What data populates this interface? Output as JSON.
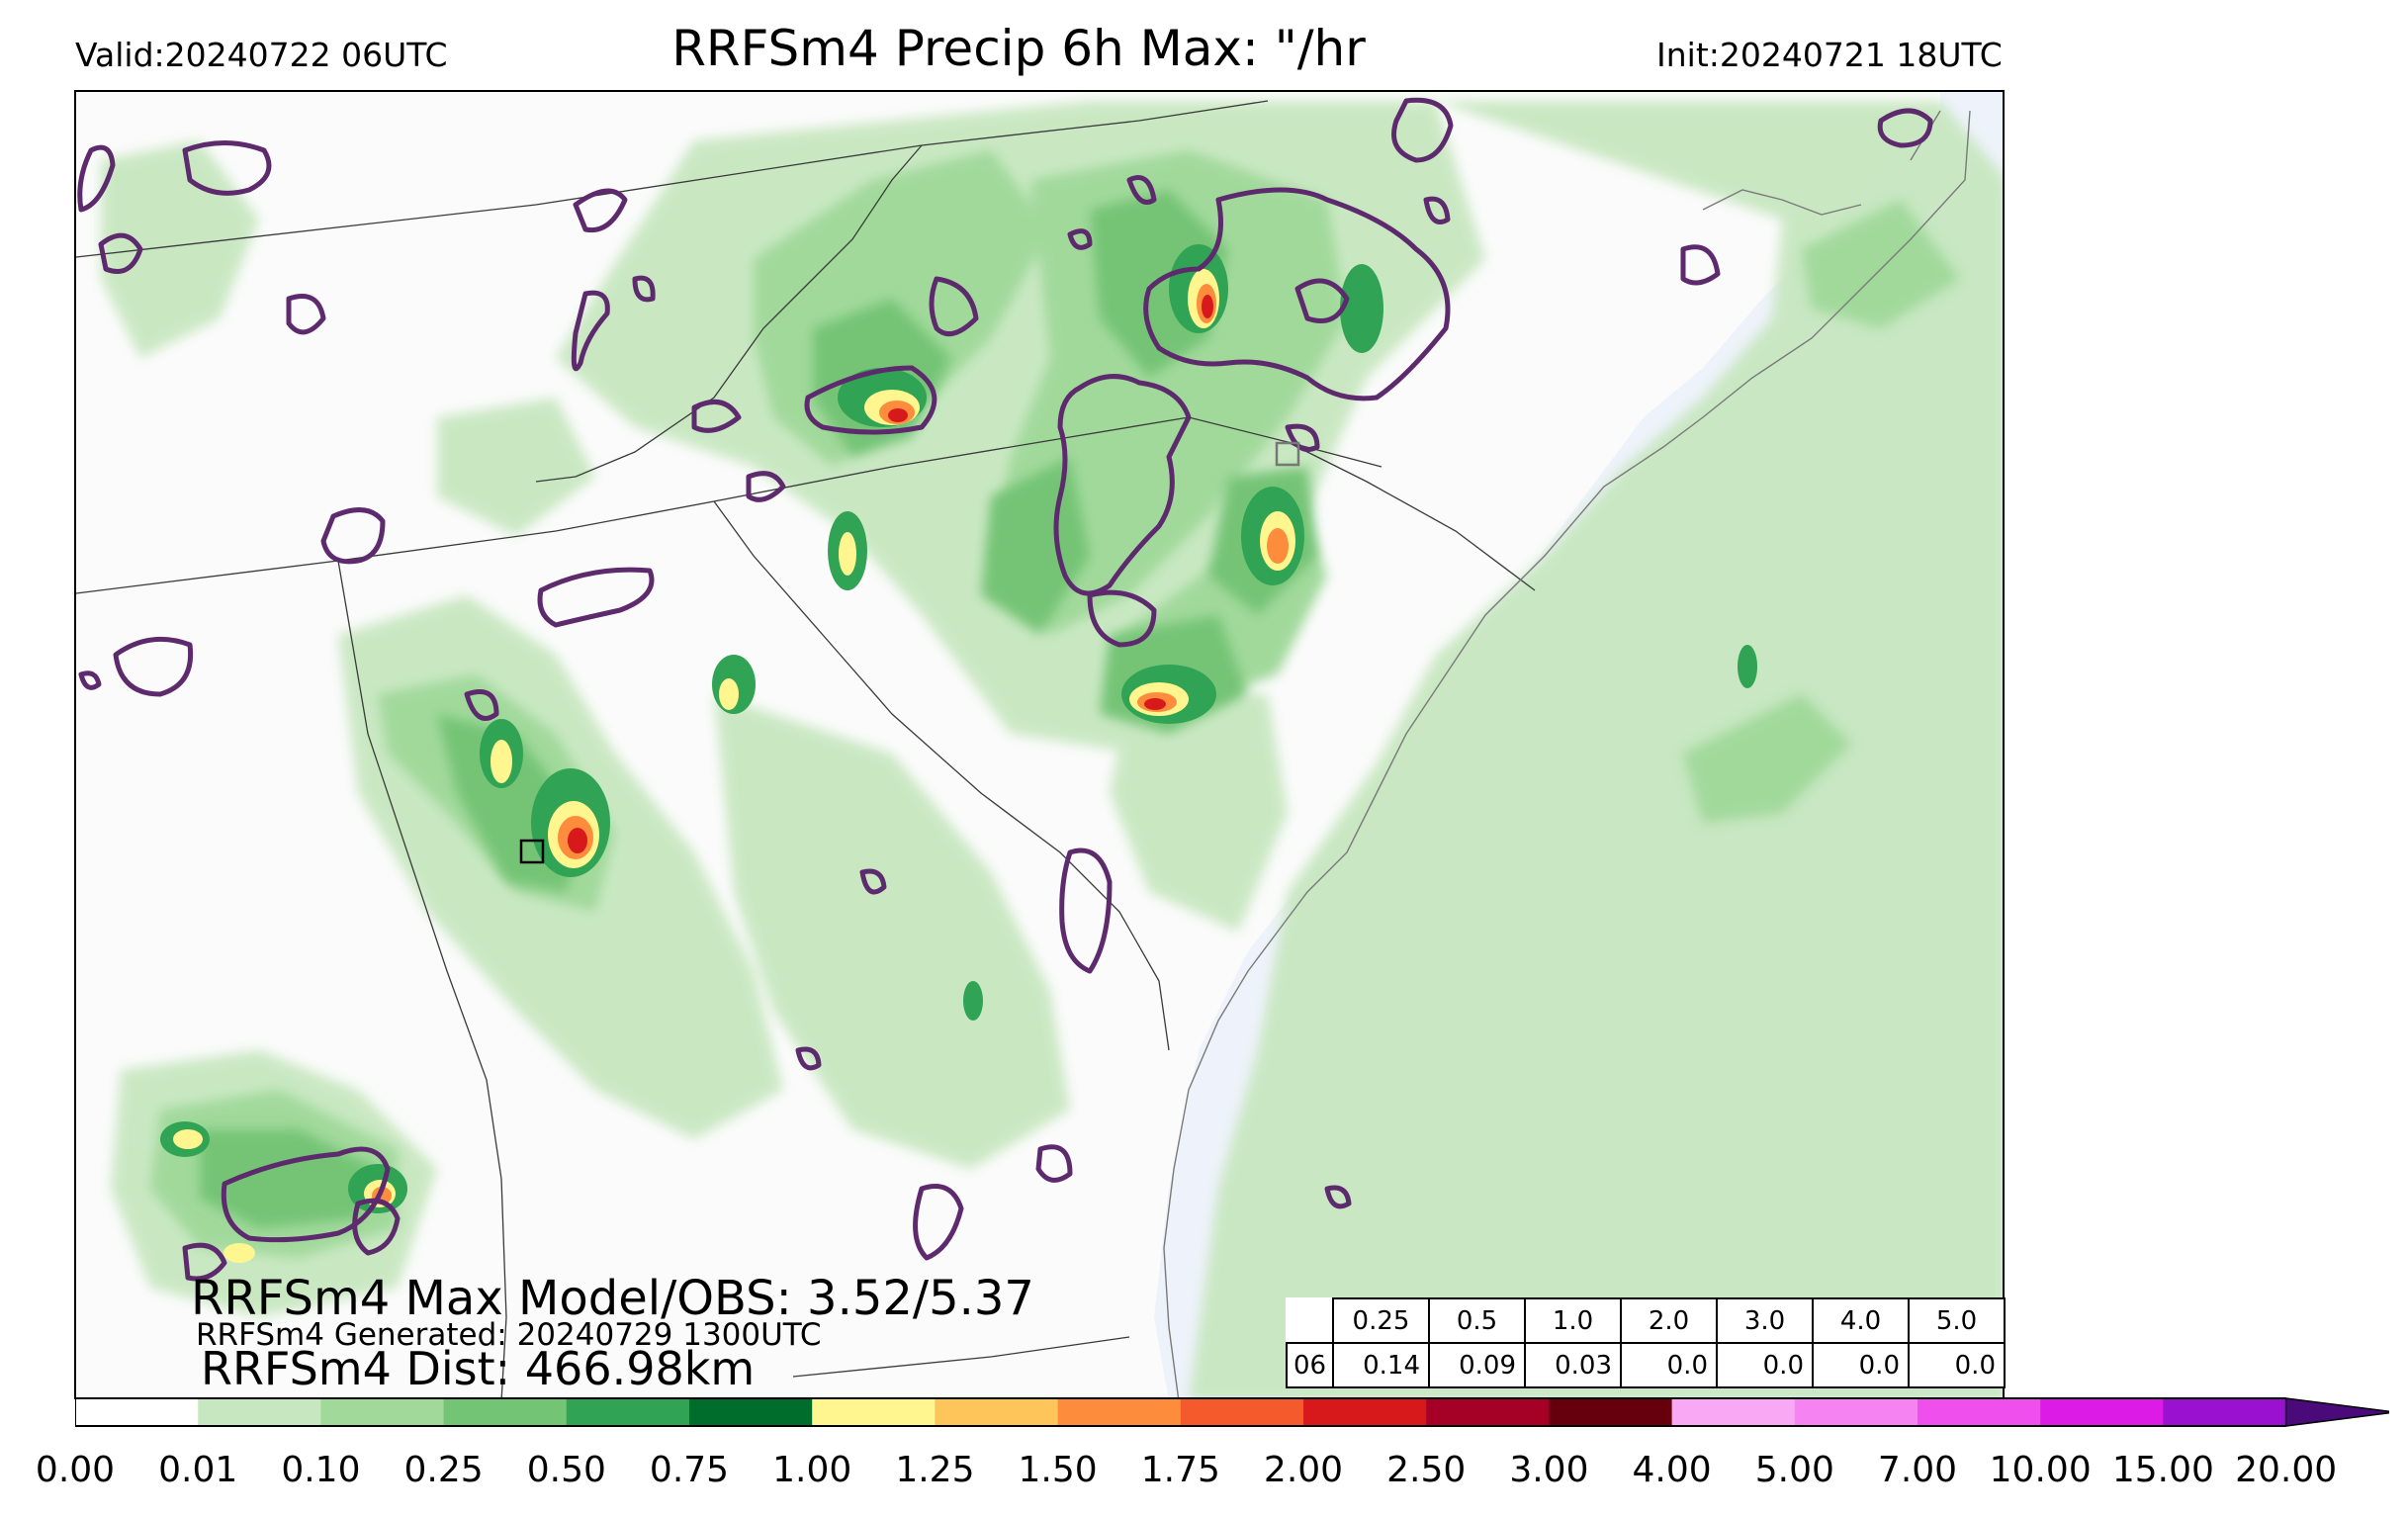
{
  "header": {
    "valid": "Valid:20240722 06UTC",
    "title": "RRFSm4 Precip 6h Max: \"/hr",
    "init": "Init:20240721 18UTC"
  },
  "summary": {
    "max_line": "RRFSm4 Max Model/OBS: 3.52/5.37",
    "generated_line": "RRFSm4 Generated: 20240729 1300UTC",
    "dist_line": "RRFSm4 Dist: 466.98km"
  },
  "stats_table": {
    "hour_label": "06",
    "thresholds": [
      "0.25",
      "0.5",
      "1.0",
      "2.0",
      "3.0",
      "4.0",
      "5.0"
    ],
    "values": [
      "0.14",
      "0.09",
      "0.03",
      "0.0",
      "0.0",
      "0.0",
      "0.0"
    ]
  },
  "colorbar": {
    "ticks": [
      "0.00",
      "0.01",
      "0.10",
      "0.25",
      "0.50",
      "0.75",
      "1.00",
      "1.25",
      "1.50",
      "1.75",
      "2.00",
      "2.50",
      "3.00",
      "4.00",
      "5.00",
      "7.00",
      "10.00",
      "15.00",
      "20.00"
    ],
    "colors": [
      "#ffffff",
      "#c7e7c0",
      "#a1d99b",
      "#74c476",
      "#31a354",
      "#006d2c",
      "#fff68f",
      "#fec55a",
      "#fd8d3c",
      "#f55a2c",
      "#d7191c",
      "#a50026",
      "#67000d",
      "#f9a9f3",
      "#f683f2",
      "#ef4fed",
      "#dd1be6",
      "#9a12cf"
    ],
    "extend_color": "#4b0a7a"
  },
  "colors": {
    "obs_contour": "#5e2a6e",
    "ocean": "#eef2fa",
    "land": "#fbfbfb",
    "boundary": "#3a3a3a"
  }
}
